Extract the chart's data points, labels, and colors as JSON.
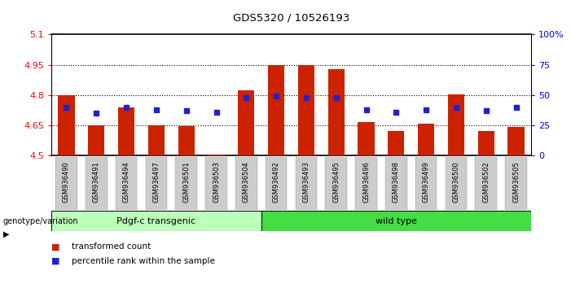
{
  "title": "GDS5320 / 10526193",
  "samples": [
    "GSM936490",
    "GSM936491",
    "GSM936494",
    "GSM936497",
    "GSM936501",
    "GSM936503",
    "GSM936504",
    "GSM936492",
    "GSM936493",
    "GSM936495",
    "GSM936496",
    "GSM936498",
    "GSM936499",
    "GSM936500",
    "GSM936502",
    "GSM936505"
  ],
  "bar_values": [
    4.8,
    4.65,
    4.74,
    4.65,
    4.645,
    4.505,
    4.825,
    4.947,
    4.947,
    4.928,
    4.665,
    4.62,
    4.66,
    4.805,
    4.62,
    4.64
  ],
  "bar_bottom": 4.5,
  "percentile_values": [
    40,
    35,
    40,
    38,
    37,
    36,
    48,
    49,
    48,
    48,
    38,
    36,
    38,
    40,
    37,
    40
  ],
  "bar_color": "#cc2200",
  "blue_color": "#2222cc",
  "ylim_left": [
    4.5,
    5.1
  ],
  "ylim_right": [
    0,
    100
  ],
  "yticks_left": [
    4.5,
    4.65,
    4.8,
    4.95,
    5.1
  ],
  "yticks_right": [
    0,
    25,
    50,
    75,
    100
  ],
  "ytick_labels_left": [
    "4.5",
    "4.65",
    "4.8",
    "4.95",
    "5.1"
  ],
  "ytick_labels_right": [
    "0",
    "25",
    "50",
    "75",
    "100%"
  ],
  "gridlines": [
    4.65,
    4.8,
    4.95
  ],
  "group1_label": "Pdgf-c transgenic",
  "group2_label": "wild type",
  "group1_count": 7,
  "group2_count": 9,
  "group1_color": "#bbffbb",
  "group2_color": "#44dd44",
  "xlabel_label": "genotype/variation",
  "legend1": "transformed count",
  "legend2": "percentile rank within the sample",
  "bar_width": 0.55,
  "bg_color": "#ffffff",
  "tick_box_color": "#cccccc"
}
